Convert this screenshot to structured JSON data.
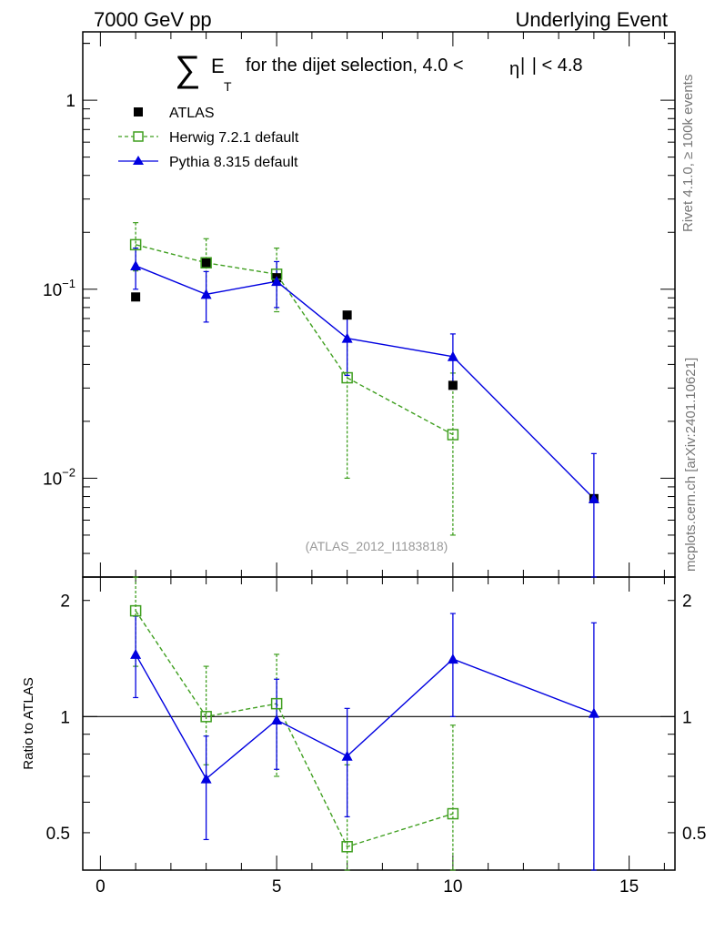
{
  "header": {
    "left": "7000 GeV pp",
    "right": "Underlying Event"
  },
  "side_labels": {
    "rivet": "Rivet 4.1.0, ≥ 100k events",
    "mcplots": "mcplots.cern.ch [arXiv:2401.10621]"
  },
  "chart_data": {
    "type": "scatter",
    "title": {
      "sum_symbol": "∑",
      "e": "E",
      "sub": "T",
      "text": "for the dijet selection, 4.0 <",
      "eta": "η",
      "text2": "| < 4.8"
    },
    "watermark": "(ATLAS_2012_I1183818)",
    "xlabel": "",
    "xlim": [
      -0.5,
      16.3
    ],
    "main_panel": {
      "yscale": "log",
      "ylim": [
        0.003,
        2.3
      ],
      "yticks": [
        {
          "value": 1,
          "base": "1",
          "exp": ""
        },
        {
          "value": 0.1,
          "base": "10",
          "exp": "−1"
        },
        {
          "value": 0.01,
          "base": "10",
          "exp": "−2"
        }
      ]
    },
    "ratio_panel": {
      "ylabel": "Ratio to ATLAS",
      "yscale": "log",
      "ylim": [
        0.4,
        2.3
      ],
      "yticks": [
        {
          "value": 2,
          "label": "2"
        },
        {
          "value": 1,
          "label": "1"
        },
        {
          "value": 0.5,
          "label": "0.5"
        }
      ]
    },
    "xticks": [
      {
        "value": 0,
        "label": "0"
      },
      {
        "value": 5,
        "label": "5"
      },
      {
        "value": 10,
        "label": "10"
      },
      {
        "value": 15,
        "label": "15"
      }
    ],
    "legend_position": "top-left",
    "series": [
      {
        "name": "ATLAS",
        "color": "#000000",
        "marker": "filled-square",
        "x": [
          1,
          3,
          5,
          7,
          10,
          14
        ],
        "y": [
          0.091,
          0.138,
          0.115,
          0.073,
          0.031,
          0.0078
        ]
      },
      {
        "name": "Herwig 7.2.1 default",
        "color": "#3f9f1f",
        "marker": "open-square",
        "line": "dashed",
        "x": [
          1,
          3,
          5,
          7,
          10
        ],
        "y": [
          0.172,
          0.138,
          0.12,
          0.034,
          0.017
        ],
        "err_hi": [
          0.225,
          0.185,
          0.165,
          0.054,
          0.036
        ],
        "err_lo": [
          0.125,
          0.093,
          0.076,
          0.01,
          0.005
        ],
        "ratio": [
          1.88,
          1.0,
          1.08,
          0.46,
          0.56
        ],
        "ratio_hi": [
          2.45,
          1.35,
          1.45,
          0.75,
          0.95
        ],
        "ratio_lo": [
          1.35,
          0.75,
          0.7,
          0.4,
          0.4
        ]
      },
      {
        "name": "Pythia 8.315 default",
        "color": "#0000e0",
        "marker": "triangle",
        "line": "solid",
        "x": [
          1,
          3,
          5,
          7,
          10,
          14
        ],
        "y": [
          0.133,
          0.094,
          0.11,
          0.055,
          0.044,
          0.0078
        ],
        "err_hi": [
          0.165,
          0.124,
          0.14,
          0.075,
          0.058,
          0.0135
        ],
        "err_lo": [
          0.1,
          0.067,
          0.08,
          0.035,
          0.03,
          0.003
        ],
        "ratio": [
          1.45,
          0.69,
          0.98,
          0.79,
          1.41,
          1.02
        ],
        "ratio_hi": [
          1.82,
          0.89,
          1.25,
          1.05,
          1.85,
          1.75
        ],
        "ratio_lo": [
          1.12,
          0.48,
          0.73,
          0.55,
          1.0,
          0.4
        ]
      }
    ]
  }
}
